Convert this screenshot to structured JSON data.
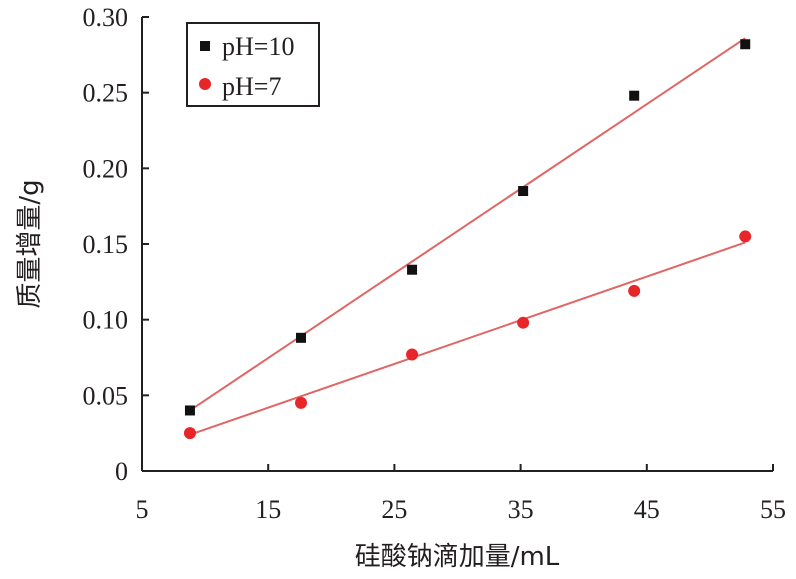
{
  "chart_data": {
    "type": "scatter",
    "xlabel": "硅酸钠滴加量/mL",
    "ylabel": "质量增量/g",
    "xlim": [
      5,
      55
    ],
    "ylim": [
      0,
      0.3
    ],
    "x_ticks": [
      "5",
      "15",
      "25",
      "35",
      "45",
      "55"
    ],
    "y_ticks": [
      "0",
      "0.05",
      "0.10",
      "0.15",
      "0.20",
      "0.25",
      "0.30"
    ],
    "grid": false,
    "legend_position": "top-left",
    "fit_line_color": "#e06666",
    "series": [
      {
        "name": "pH=10",
        "marker": "square",
        "color": "#111111",
        "x": [
          8.8,
          17.6,
          26.4,
          35.2,
          44.0,
          52.8
        ],
        "y": [
          0.04,
          0.088,
          0.133,
          0.185,
          0.248,
          0.282
        ],
        "fit": {
          "x": [
            8.8,
            52.8
          ],
          "y": [
            0.04,
            0.286
          ]
        }
      },
      {
        "name": "pH=7",
        "marker": "circle",
        "color": "#e8262a",
        "x": [
          8.8,
          17.6,
          26.4,
          35.2,
          44.0,
          52.8
        ],
        "y": [
          0.025,
          0.045,
          0.077,
          0.098,
          0.119,
          0.155
        ],
        "fit": {
          "x": [
            8.8,
            52.8
          ],
          "y": [
            0.024,
            0.151
          ]
        }
      }
    ]
  }
}
